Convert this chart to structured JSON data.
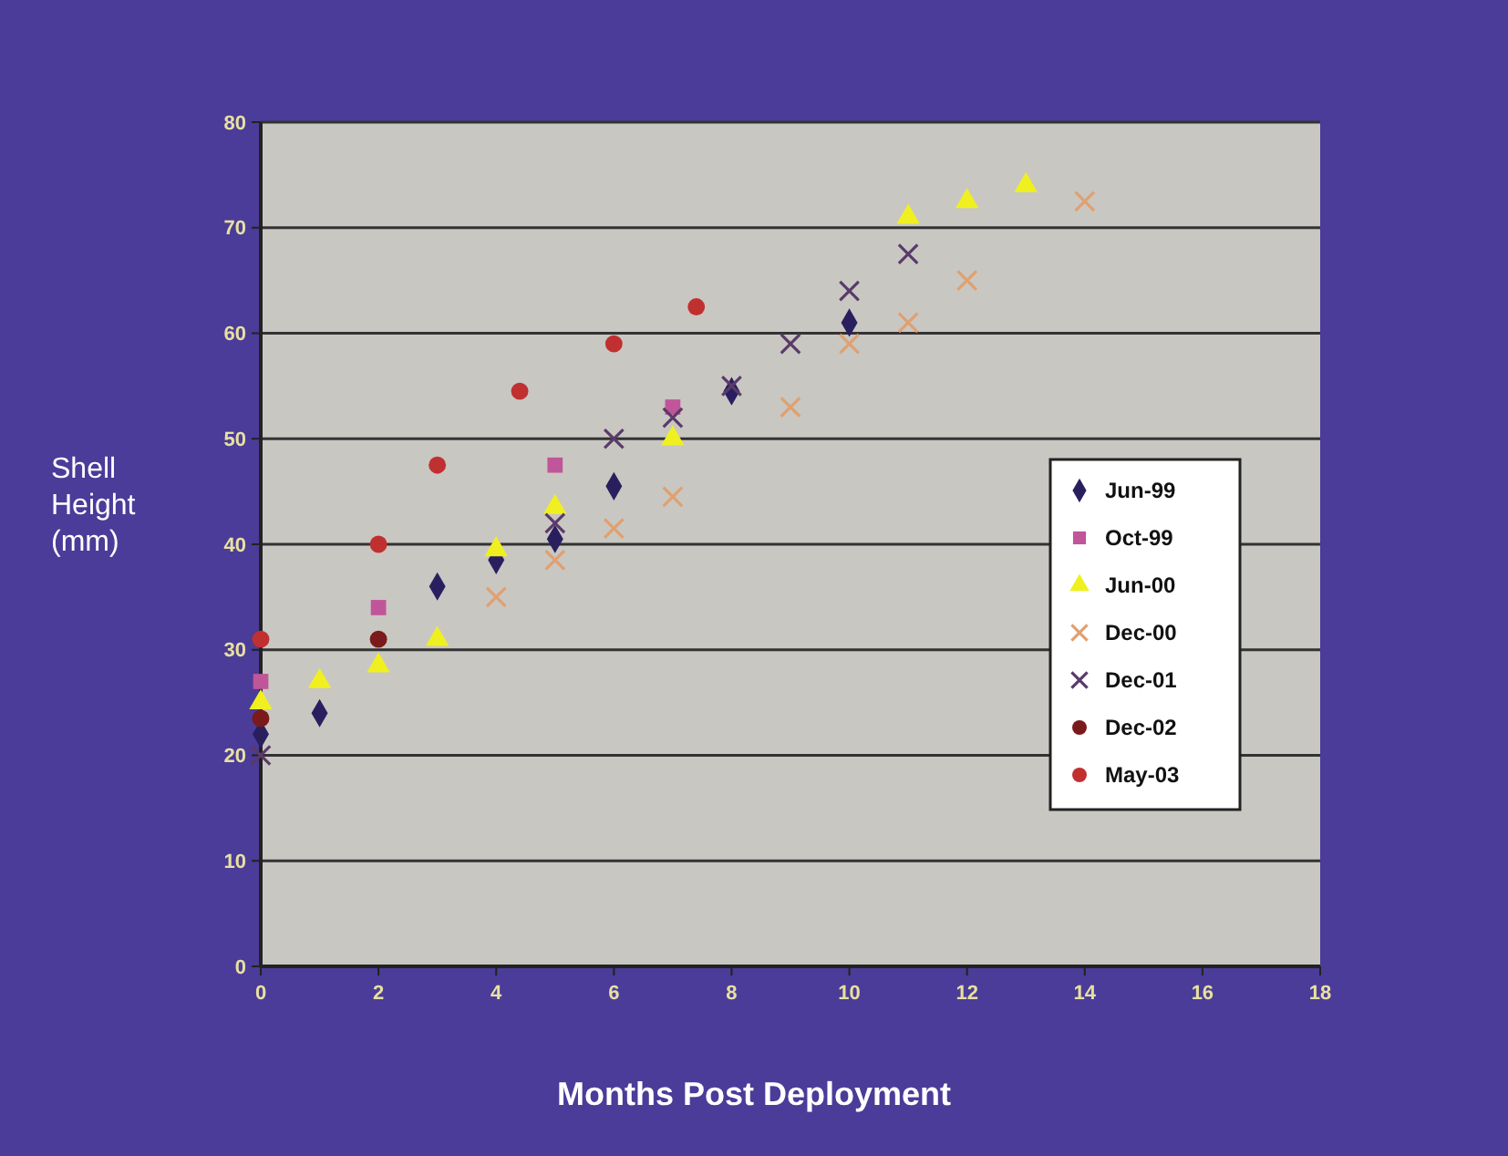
{
  "chart_data": {
    "type": "scatter",
    "xlabel": "Months Post Deployment",
    "ylabel": "Shell Height (mm)",
    "xlim": [
      0,
      18
    ],
    "xticks": [
      0,
      2,
      4,
      6,
      8,
      10,
      12,
      14,
      16,
      18
    ],
    "ylim": [
      0,
      80
    ],
    "yticks": [
      0,
      10,
      20,
      30,
      40,
      50,
      60,
      70,
      80
    ],
    "grid": "y",
    "legend": "right",
    "series": [
      {
        "name": "Jun-99",
        "color": "#2a1f5e",
        "marker": "diamond",
        "x": [
          0,
          1,
          3,
          4,
          5,
          6,
          8,
          10
        ],
        "values": [
          22,
          24,
          36,
          38.5,
          40.5,
          45.5,
          54.5,
          61
        ]
      },
      {
        "name": "Oct-99",
        "color": "#c0559a",
        "marker": "square",
        "x": [
          0,
          2,
          5,
          7
        ],
        "values": [
          27,
          34,
          47.5,
          53
        ]
      },
      {
        "name": "Jun-00",
        "color": "#f0f020",
        "marker": "triangle",
        "x": [
          0,
          1,
          2,
          3,
          4,
          5,
          7,
          11,
          12,
          13
        ],
        "values": [
          25,
          27,
          28.5,
          31,
          39.5,
          43.5,
          50,
          71,
          72.5,
          74
        ]
      },
      {
        "name": "Dec-00",
        "color": "#e0a070",
        "marker": "cross",
        "x": [
          4,
          5,
          6,
          7,
          9,
          10,
          11,
          12,
          14
        ],
        "values": [
          35,
          38.5,
          41.5,
          44.5,
          53,
          59,
          61,
          65,
          72.5
        ]
      },
      {
        "name": "Dec-01",
        "color": "#5a3a6a",
        "marker": "cross",
        "x": [
          0,
          5,
          6,
          7,
          8,
          9,
          10,
          11
        ],
        "values": [
          20,
          42,
          50,
          52,
          55,
          59,
          64,
          67.5
        ]
      },
      {
        "name": "Dec-02",
        "color": "#7a1a1a",
        "marker": "circle",
        "x": [
          0,
          2
        ],
        "values": [
          23.5,
          31
        ]
      },
      {
        "name": "May-03",
        "color": "#c03030",
        "marker": "circle",
        "x": [
          0,
          2,
          3,
          4.4,
          6,
          7.4
        ],
        "values": [
          31,
          40,
          47.5,
          54.5,
          59,
          62.5
        ]
      }
    ]
  }
}
